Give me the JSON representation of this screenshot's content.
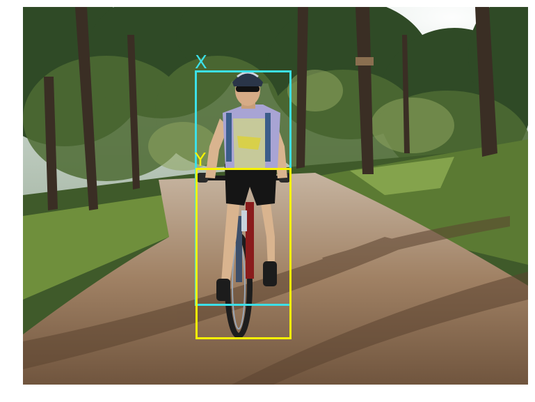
{
  "annotations": [
    {
      "label": "X",
      "color": "#3ce0e8"
    },
    {
      "label": "Y",
      "color": "#f7f300"
    }
  ]
}
